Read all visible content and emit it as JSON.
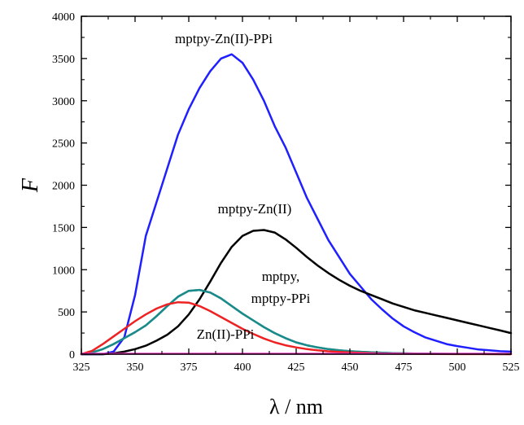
{
  "chart_data": {
    "type": "line",
    "xlabel": "λ / nm",
    "ylabel": "F",
    "xlim": [
      325,
      525
    ],
    "ylim": [
      0,
      4000
    ],
    "x_ticks": [
      325,
      350,
      375,
      400,
      425,
      450,
      475,
      500,
      525
    ],
    "y_ticks": [
      0,
      500,
      1000,
      1500,
      2000,
      2500,
      3000,
      3500,
      4000
    ],
    "grid": false,
    "annotations": [
      {
        "text": "mptpy-Zn(II)-PPi",
        "series": "mptpy-Zn(II)-PPi"
      },
      {
        "text": "mptpy-Zn(II)",
        "series": "mptpy-Zn(II)"
      },
      {
        "text": "mptpy,",
        "series": "mptpy"
      },
      {
        "text": "mptpy-PPi",
        "series": "mptpy-PPi"
      },
      {
        "text": "Zn(II)-PPi",
        "series": "Zn(II)-PPi"
      }
    ],
    "series": [
      {
        "name": "mptpy-Zn(II)-PPi",
        "color": "#1f1fff",
        "x": [
          325,
          335,
          340,
          345,
          350,
          355,
          360,
          365,
          370,
          375,
          380,
          385,
          390,
          395,
          400,
          405,
          410,
          415,
          420,
          425,
          430,
          435,
          440,
          445,
          450,
          455,
          460,
          465,
          470,
          475,
          480,
          485,
          490,
          495,
          500,
          505,
          510,
          515,
          520,
          525
        ],
        "y": [
          0,
          0,
          30,
          200,
          700,
          1400,
          1800,
          2200,
          2600,
          2900,
          3150,
          3350,
          3500,
          3550,
          3450,
          3250,
          3000,
          2700,
          2450,
          2150,
          1850,
          1600,
          1350,
          1150,
          950,
          800,
          650,
          530,
          420,
          330,
          260,
          200,
          160,
          120,
          95,
          75,
          55,
          45,
          35,
          30
        ]
      },
      {
        "name": "mptpy-Zn(II)",
        "color": "#000000",
        "x": [
          325,
          335,
          340,
          345,
          350,
          355,
          360,
          365,
          370,
          375,
          380,
          385,
          390,
          395,
          400,
          405,
          410,
          415,
          420,
          425,
          430,
          435,
          440,
          445,
          450,
          455,
          460,
          465,
          470,
          475,
          480,
          485,
          490,
          495,
          500,
          505,
          510,
          515,
          520,
          525
        ],
        "y": [
          0,
          0,
          10,
          30,
          60,
          100,
          160,
          230,
          330,
          470,
          650,
          860,
          1080,
          1270,
          1400,
          1460,
          1470,
          1440,
          1360,
          1260,
          1150,
          1050,
          960,
          880,
          810,
          750,
          700,
          650,
          600,
          560,
          520,
          490,
          460,
          430,
          400,
          370,
          340,
          310,
          280,
          250
        ]
      },
      {
        "name": "mptpy",
        "color": "#1a8a8a",
        "x": [
          325,
          330,
          335,
          340,
          345,
          350,
          355,
          360,
          365,
          370,
          375,
          380,
          385,
          390,
          395,
          400,
          405,
          410,
          415,
          420,
          425,
          430,
          435,
          440,
          445,
          450,
          455,
          460,
          465,
          470,
          475,
          480,
          490,
          500,
          510,
          525
        ],
        "y": [
          0,
          20,
          60,
          120,
          190,
          260,
          340,
          450,
          570,
          680,
          750,
          760,
          730,
          660,
          570,
          480,
          400,
          320,
          250,
          190,
          140,
          105,
          80,
          60,
          45,
          35,
          28,
          22,
          17,
          13,
          10,
          8,
          5,
          3,
          2,
          1
        ]
      },
      {
        "name": "mptpy-PPi",
        "color": "#1a8a8a",
        "x": [
          325,
          330,
          335,
          340,
          345,
          350,
          355,
          360,
          365,
          370,
          375,
          380,
          385,
          390,
          395,
          400,
          405,
          410,
          415,
          420,
          425,
          430,
          435,
          440,
          445,
          450,
          455,
          460,
          465,
          470,
          475,
          480,
          490,
          500,
          510,
          525
        ],
        "y": [
          0,
          20,
          60,
          120,
          190,
          260,
          340,
          450,
          570,
          680,
          750,
          760,
          730,
          660,
          570,
          480,
          400,
          320,
          250,
          190,
          140,
          105,
          80,
          60,
          45,
          35,
          28,
          22,
          17,
          13,
          10,
          8,
          5,
          3,
          2,
          1
        ]
      },
      {
        "name": "red",
        "color": "#ee2222",
        "x": [
          325,
          330,
          335,
          340,
          345,
          350,
          355,
          360,
          365,
          370,
          375,
          380,
          385,
          390,
          395,
          400,
          405,
          410,
          415,
          420,
          425,
          430,
          435,
          440,
          445,
          450,
          455,
          460,
          465,
          470,
          480,
          490,
          500,
          510,
          525
        ],
        "y": [
          0,
          40,
          120,
          210,
          300,
          390,
          470,
          540,
          590,
          615,
          610,
          570,
          510,
          440,
          370,
          300,
          240,
          185,
          140,
          105,
          80,
          60,
          45,
          34,
          26,
          20,
          15,
          11,
          8,
          6,
          4,
          2,
          1,
          1,
          0
        ]
      },
      {
        "name": "Zn(II)-PPi",
        "color": "#ff33cc",
        "x": [
          325,
          525
        ],
        "y": [
          5,
          5
        ]
      }
    ]
  }
}
